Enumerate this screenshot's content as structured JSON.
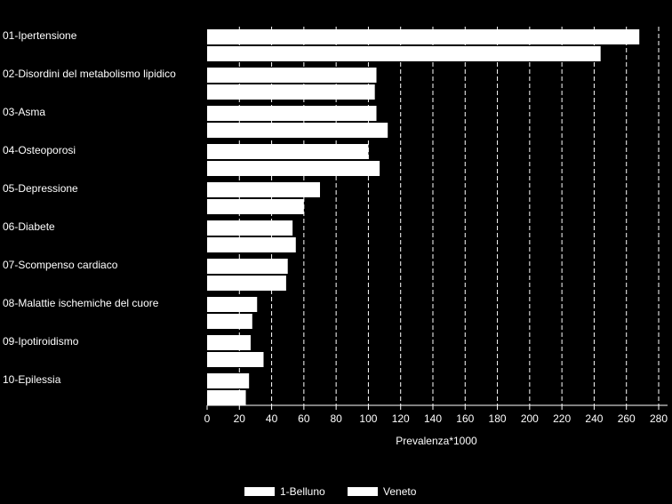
{
  "chart_data": {
    "type": "hbar",
    "categories": [
      "01-Ipertensione",
      "02-Disordini del metabolismo lipidico",
      "03-Asma",
      "04-Osteoporosi",
      "05-Depressione",
      "06-Diabete",
      "07-Scompenso cardiaco",
      "08-Malattie ischemiche del cuore",
      "09-Ipotiroidismo",
      "10-Epilessia"
    ],
    "series": [
      {
        "name": "1-Belluno",
        "color": "#ffffff",
        "values": [
          268,
          105,
          105,
          100,
          70,
          53,
          50,
          31,
          27,
          26
        ]
      },
      {
        "name": "Veneto",
        "color": "#ffffff",
        "values": [
          244,
          104,
          112,
          107,
          60,
          55,
          49,
          28,
          35,
          24
        ]
      }
    ],
    "x_label": "Prevalenza*1000",
    "xlim": [
      0,
      280
    ],
    "xticks": [
      0,
      20,
      40,
      60,
      80,
      100,
      120,
      140,
      160,
      180,
      200,
      220,
      240,
      260,
      280
    ],
    "grid": true
  }
}
